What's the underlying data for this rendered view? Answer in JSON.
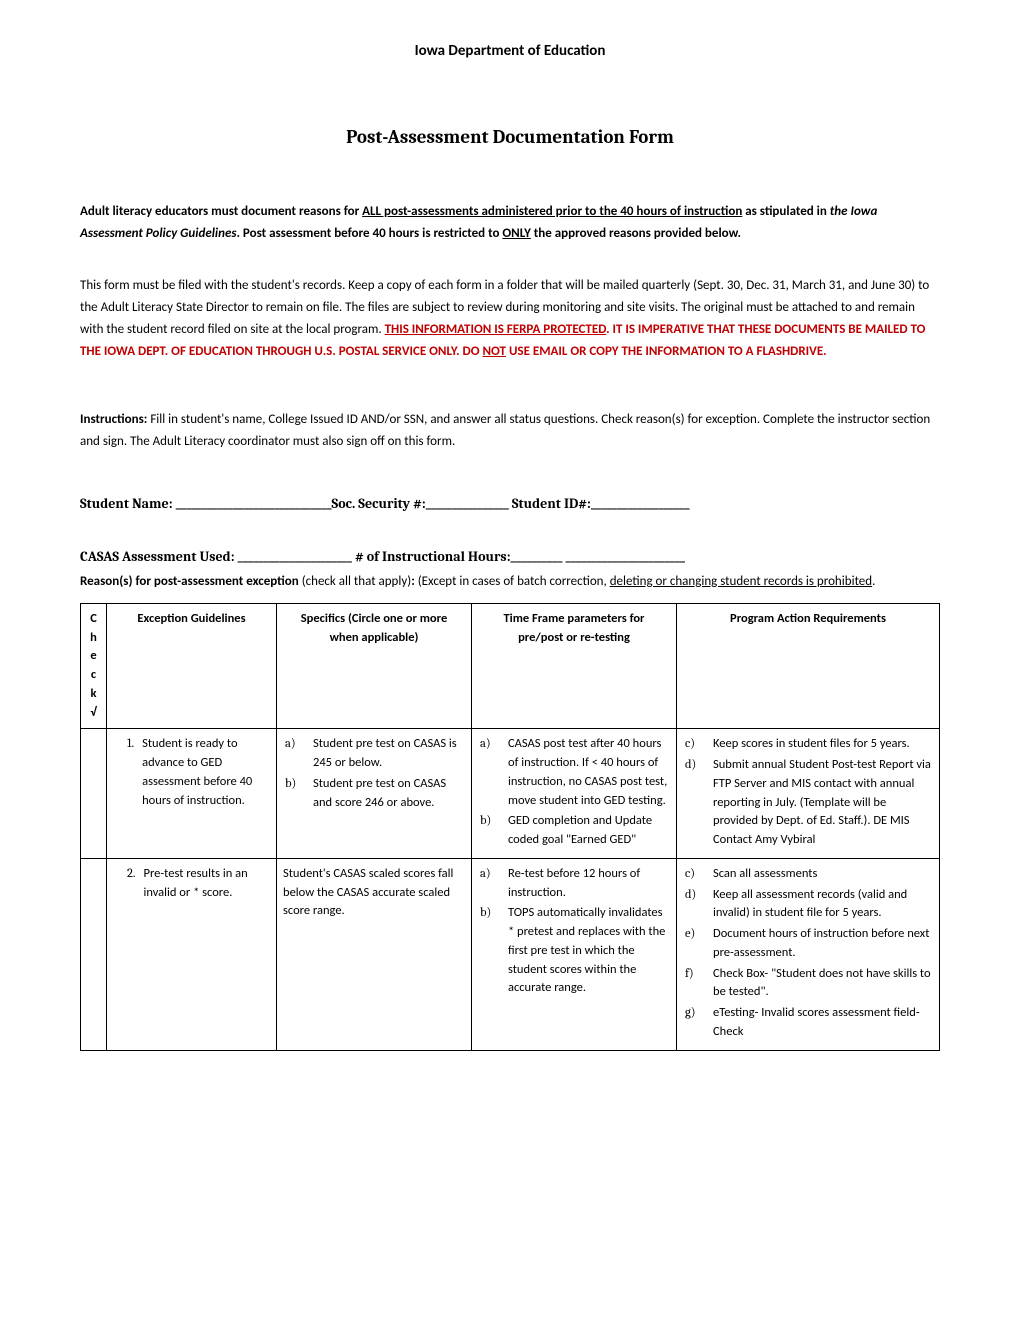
{
  "header": {
    "org": "Iowa Department of Education",
    "title": "Post-Assessment Documentation Form"
  },
  "intro": {
    "lead": "Adult literacy educators must document reasons for ",
    "underlined1": "ALL post-assessments administered prior to the 40 hours of instruction",
    "mid1": " as stipulated in ",
    "italic1": "the Iowa Assessment Policy Guidelines",
    "mid2": ".  Post assessment before 40 hours is restricted to ",
    "underlined2": "ONLY",
    "tail": " the approved reasons provided below."
  },
  "filing": {
    "text": "This form must be filed with the student's records. Keep a copy of each form in a folder that will be mailed quarterly (Sept. 30, Dec. 31, March 31, and June 30) to the Adult Literacy State Director to remain on file. The files are subject to review during monitoring and site visits. The original must be attached to and remain with the student record filed on site at the local program.  ",
    "warn1_under": "THIS INFORMATION IS FERPA PROTECTED",
    "warn2": ".  IT IS IMPERATIVE THAT THESE DOCUMENTS BE MAILED TO THE IOWA DEPT. OF EDUCATION THROUGH U.S. POSTAL SERVICE ONLY. DO ",
    "warn_not": "NOT",
    "warn3": " USE EMAIL OR COPY THE INFORMATION TO A FLASHDRIVE."
  },
  "instructions": {
    "label": "Instructions:",
    "text": " Fill in student's name, College Issued ID AND/or SSN, and answer all status questions. Check reason(s) for exception. Complete the instructor section and sign.  The Adult Literacy coordinator must also sign off on this form."
  },
  "fields": {
    "row1_name": "Student Name: ",
    "row1_name_blank": "______________________________",
    "row1_ssn": "Soc. Security #:",
    "row1_ssn_blank": "________________",
    "row1_id": "   Student ID#:",
    "row1_id_blank": "___________________",
    "row2_assess": "CASAS Assessment Used: ",
    "row2_assess_blank": "______________________",
    "row2_hours": "  # of Instructional Hours:",
    "row2_hours_blank": "__________  _______________________"
  },
  "reasons": {
    "label": "Reason(s) for post-assessment exception ",
    "paren": "(check all that apply)",
    "colon": ": ",
    "except": "(Except in cases of batch correction, ",
    "under": "deleting or changing student records is prohibited",
    "end": "."
  },
  "table": {
    "headers": {
      "check": "Check √",
      "guidelines": "Exception Guidelines",
      "specifics": "Specifics (Circle one or more when applicable)",
      "timeframe": "Time Frame parameters for pre/post or re-testing",
      "program": "Program Action Requirements"
    },
    "rows": [
      {
        "num": "1.",
        "guideline": "Student is ready to advance to GED assessment before 40 hours of instruction.",
        "specifics": [
          {
            "m": "a)",
            "t": "Student pre test on CASAS is 245 or below."
          },
          {
            "m": "b)",
            "t": "Student pre test on CASAS and score 246 or above."
          }
        ],
        "timeframe": [
          {
            "m": "a)",
            "t": "CASAS post test after 40 hours of instruction. If < 40 hours of instruction, no CASAS post test, move student into GED testing."
          },
          {
            "m": "b)",
            "t": "GED completion and Update coded goal \"Earned GED\""
          }
        ],
        "program": [
          {
            "m": "c)",
            "t": "Keep scores in student files for 5 years."
          },
          {
            "m": "d)",
            "t": "Submit annual Student Post-test Report via FTP Server and MIS contact with annual reporting in July. (Template will be provided by Dept. of Ed. Staff.).  DE MIS Contact Amy Vybiral"
          }
        ]
      },
      {
        "num": "2.",
        "guideline": "Pre-test results in an invalid or * score.",
        "specifics_plain": "Student's CASAS scaled scores fall below the CASAS accurate scaled score range.",
        "timeframe": [
          {
            "m": "a)",
            "t": "Re-test before 12 hours of instruction."
          },
          {
            "m": "b)",
            "t": "TOPS automatically invalidates * pretest and replaces with the first pre test in which the student scores within the accurate range."
          }
        ],
        "program": [
          {
            "m": "c)",
            "t": "Scan all assessments"
          },
          {
            "m": "d)",
            "t": "Keep all assessment records (valid and invalid) in student file for 5 years."
          },
          {
            "m": "e)",
            "t": "Document hours of instruction before next pre-assessment."
          },
          {
            "m": "f)",
            "t": "Check Box- \"Student does not have skills to be tested\"."
          },
          {
            "m": "g)",
            "t": "eTesting- Invalid scores assessment field- Check"
          }
        ]
      }
    ]
  }
}
